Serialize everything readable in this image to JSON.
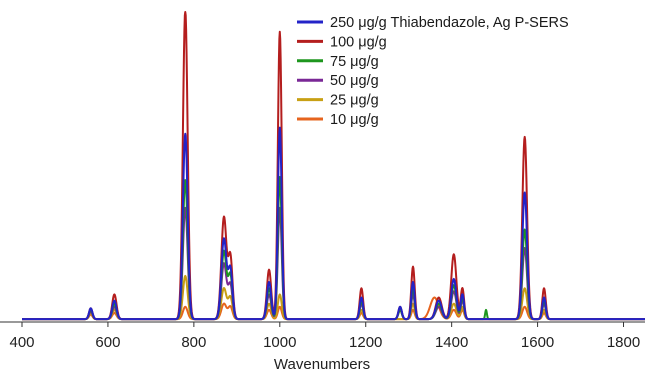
{
  "chart_data": {
    "type": "line",
    "xlabel": "Wavenumbers",
    "ylabel": "",
    "title": "",
    "xlim": [
      400,
      1850
    ],
    "ylim": [
      0,
      100
    ],
    "grid": false,
    "legend_position": "top-right",
    "x_ticks": [
      "400",
      "600",
      "800",
      "1000",
      "1200",
      "1400",
      "1600",
      "1800"
    ],
    "series": [
      {
        "name": "250 μg/g Thiabendazole, Ag P-SERS",
        "color": "#2323c8",
        "peaks": [
          [
            560,
            3.5,
            4
          ],
          [
            615,
            6,
            5
          ],
          [
            780,
            60,
            5.5
          ],
          [
            870,
            26,
            6
          ],
          [
            885,
            16,
            5
          ],
          [
            975,
            12,
            5
          ],
          [
            1000,
            62,
            4.5
          ],
          [
            1190,
            7,
            4
          ],
          [
            1280,
            4,
            4
          ],
          [
            1310,
            12,
            4
          ],
          [
            1370,
            6,
            7
          ],
          [
            1405,
            13,
            6
          ],
          [
            1425,
            8,
            4
          ],
          [
            1570,
            41,
            5.5
          ],
          [
            1615,
            7,
            4
          ]
        ]
      },
      {
        "name": "100 μg/g",
        "color": "#b41e1e",
        "peaks": [
          [
            560,
            3.5,
            4
          ],
          [
            615,
            8,
            5
          ],
          [
            780,
            100,
            5.5
          ],
          [
            870,
            33,
            6
          ],
          [
            885,
            20,
            5
          ],
          [
            975,
            16,
            5
          ],
          [
            1000,
            93,
            4.5
          ],
          [
            1190,
            10,
            4
          ],
          [
            1280,
            4,
            4
          ],
          [
            1310,
            17,
            4
          ],
          [
            1370,
            7,
            7
          ],
          [
            1405,
            21,
            6
          ],
          [
            1425,
            10,
            4
          ],
          [
            1570,
            59,
            5.5
          ],
          [
            1615,
            10,
            4
          ]
        ]
      },
      {
        "name": "75 μg/g",
        "color": "#1e961e",
        "peaks": [
          [
            560,
            3,
            4
          ],
          [
            615,
            5,
            5
          ],
          [
            780,
            45,
            5.5
          ],
          [
            870,
            22,
            6
          ],
          [
            885,
            14,
            5
          ],
          [
            975,
            10,
            5
          ],
          [
            1000,
            46,
            4.5
          ],
          [
            1190,
            6,
            4
          ],
          [
            1280,
            3,
            4
          ],
          [
            1310,
            10,
            4
          ],
          [
            1370,
            5,
            7
          ],
          [
            1405,
            11,
            6
          ],
          [
            1425,
            7,
            4
          ],
          [
            1480,
            3,
            2
          ],
          [
            1570,
            29,
            5.5
          ],
          [
            1615,
            6,
            4
          ]
        ]
      },
      {
        "name": "50 μg/g",
        "color": "#7a2896",
        "peaks": [
          [
            560,
            2.5,
            4
          ],
          [
            615,
            4,
            5
          ],
          [
            780,
            36,
            5.5
          ],
          [
            870,
            18,
            6
          ],
          [
            885,
            11,
            5
          ],
          [
            975,
            8,
            5
          ],
          [
            1000,
            36,
            4.5
          ],
          [
            1190,
            5,
            4
          ],
          [
            1280,
            3,
            4
          ],
          [
            1310,
            8,
            4
          ],
          [
            1370,
            4,
            7
          ],
          [
            1405,
            9,
            6
          ],
          [
            1425,
            6,
            4
          ],
          [
            1570,
            23,
            5.5
          ],
          [
            1615,
            5,
            4
          ]
        ]
      },
      {
        "name": "25 μg/g",
        "color": "#c8a014",
        "peaks": [
          [
            560,
            2,
            4
          ],
          [
            615,
            3,
            5
          ],
          [
            780,
            14,
            5.5
          ],
          [
            870,
            10,
            6
          ],
          [
            885,
            7,
            5
          ],
          [
            975,
            5,
            5
          ],
          [
            1000,
            8,
            4.5
          ],
          [
            1190,
            3,
            4
          ],
          [
            1310,
            5,
            4
          ],
          [
            1370,
            6,
            7
          ],
          [
            1405,
            5,
            6
          ],
          [
            1425,
            4,
            4
          ],
          [
            1570,
            10,
            5.5
          ],
          [
            1615,
            3,
            4
          ]
        ]
      },
      {
        "name": "10 μg/g",
        "color": "#e6641e",
        "peaks": [
          [
            560,
            1.5,
            4
          ],
          [
            615,
            2,
            5
          ],
          [
            780,
            4,
            5.5
          ],
          [
            870,
            5,
            6
          ],
          [
            885,
            4,
            5
          ],
          [
            975,
            3,
            5
          ],
          [
            1000,
            4,
            4.5
          ],
          [
            1190,
            2,
            4
          ],
          [
            1310,
            3,
            4
          ],
          [
            1360,
            7,
            10
          ],
          [
            1405,
            3,
            6
          ],
          [
            1425,
            3,
            4
          ],
          [
            1570,
            4,
            5.5
          ],
          [
            1615,
            2,
            4
          ]
        ]
      }
    ]
  }
}
